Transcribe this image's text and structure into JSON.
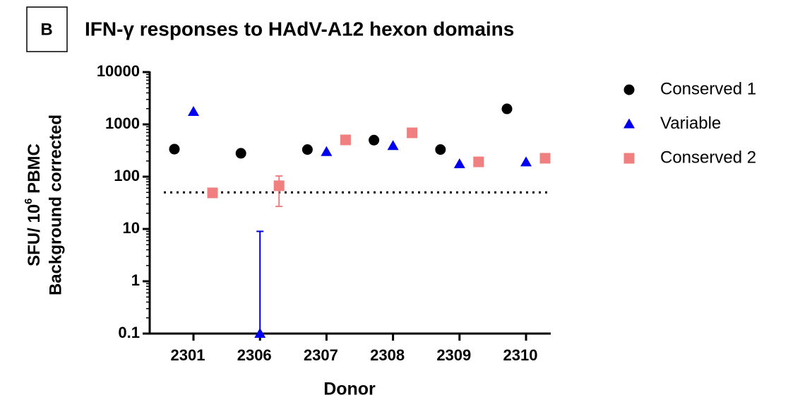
{
  "chart_data": {
    "type": "scatter",
    "panel": "B",
    "title": "IFN-γ responses to HAdV-A12 hexon domains",
    "ylabel": {
      "line1": "SFU/ 10",
      "superscript": "6",
      "line1_end": " PBMC",
      "line2": "Background corrected"
    },
    "xlabel": "Donor",
    "categories": [
      "2301",
      "2306",
      "2307",
      "2308",
      "2309",
      "2310"
    ],
    "log_scale": true,
    "ylim": [
      0.1,
      10000
    ],
    "yticks": [
      0.1,
      1,
      10,
      100,
      1000,
      10000
    ],
    "reference_line": 50,
    "legend": "right",
    "series": [
      {
        "name": "Conserved 1",
        "color": "#000000",
        "marker": "circle",
        "values": [
          336,
          280,
          330,
          500,
          330,
          1980
        ],
        "errors": [
          null,
          null,
          null,
          null,
          null,
          null
        ]
      },
      {
        "name": "Variable",
        "color": "#0000ee",
        "marker": "triangle",
        "values": [
          1750,
          0.1,
          300,
          390,
          175,
          190
        ],
        "errors": [
          null,
          [
            0.1,
            9
          ],
          null,
          null,
          null,
          null
        ]
      },
      {
        "name": "Conserved 2",
        "color": "#f08080",
        "marker": "square",
        "values": [
          49,
          67,
          505,
          690,
          192,
          225
        ],
        "errors": [
          null,
          [
            27,
            103
          ],
          null,
          null,
          null,
          null
        ]
      }
    ]
  }
}
